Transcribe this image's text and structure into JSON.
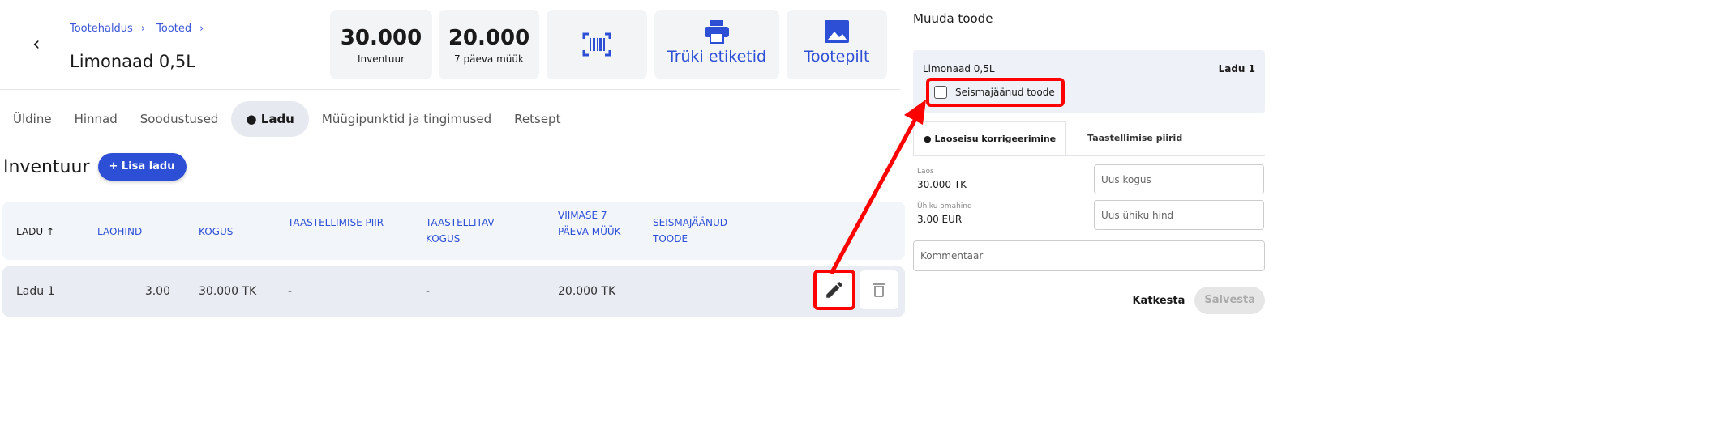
{
  "breadcrumb": [
    "Tootehaldus",
    "Tooted"
  ],
  "title": "Limonaad 0,5L",
  "stats": [
    {
      "value": "30.000",
      "label": "Inventuur"
    },
    {
      "value": "20.000",
      "label": "7 päeva müük"
    }
  ],
  "actions": {
    "barcode_icon": "barcode-icon",
    "print": "Trüki etiketid",
    "image": "Tootepilt"
  },
  "tabs": [
    "Üldine",
    "Hinnad",
    "Soodustused",
    "Ladu",
    "Müügipunktid ja tingimused",
    "Retsept"
  ],
  "section": {
    "title": "Inventuur",
    "add_button": "Lisa ladu"
  },
  "table": {
    "headers": [
      "LADU",
      "LAOHIND",
      "KOGUS",
      "TAASTELLIMISE PIIR",
      "TAASTELLITAV KOGUS",
      "VIIMASE 7 PÄEVA MÜÜK",
      "SEISMAJÄÄNUD TOODE"
    ],
    "rows": [
      {
        "cells": [
          "Ladu 1",
          "3.00",
          "30.000 TK",
          "-",
          "-",
          "20.000 TK"
        ]
      }
    ]
  },
  "panel": {
    "title": "Muuda toode",
    "product": "Limonaad 0,5L",
    "warehouse": "Ladu 1",
    "checkbox": "Seismajäänud toode",
    "tabs": [
      "Laoseisu korrigeerimine",
      "Taastellimise piirid"
    ],
    "stock_label": "Laos",
    "stock_value": "30.000 TK",
    "unit_label": "Ühiku omahind",
    "unit_value": "3.00 EUR",
    "qty_placeholder": "Uus kogus",
    "price_placeholder": "Uus ühiku hind",
    "comment_placeholder": "Kommentaar",
    "cancel": "Katkesta",
    "save": "Salvesta"
  },
  "colors": {
    "accent": "#2c4fd6",
    "highlight": "#ff0000"
  }
}
